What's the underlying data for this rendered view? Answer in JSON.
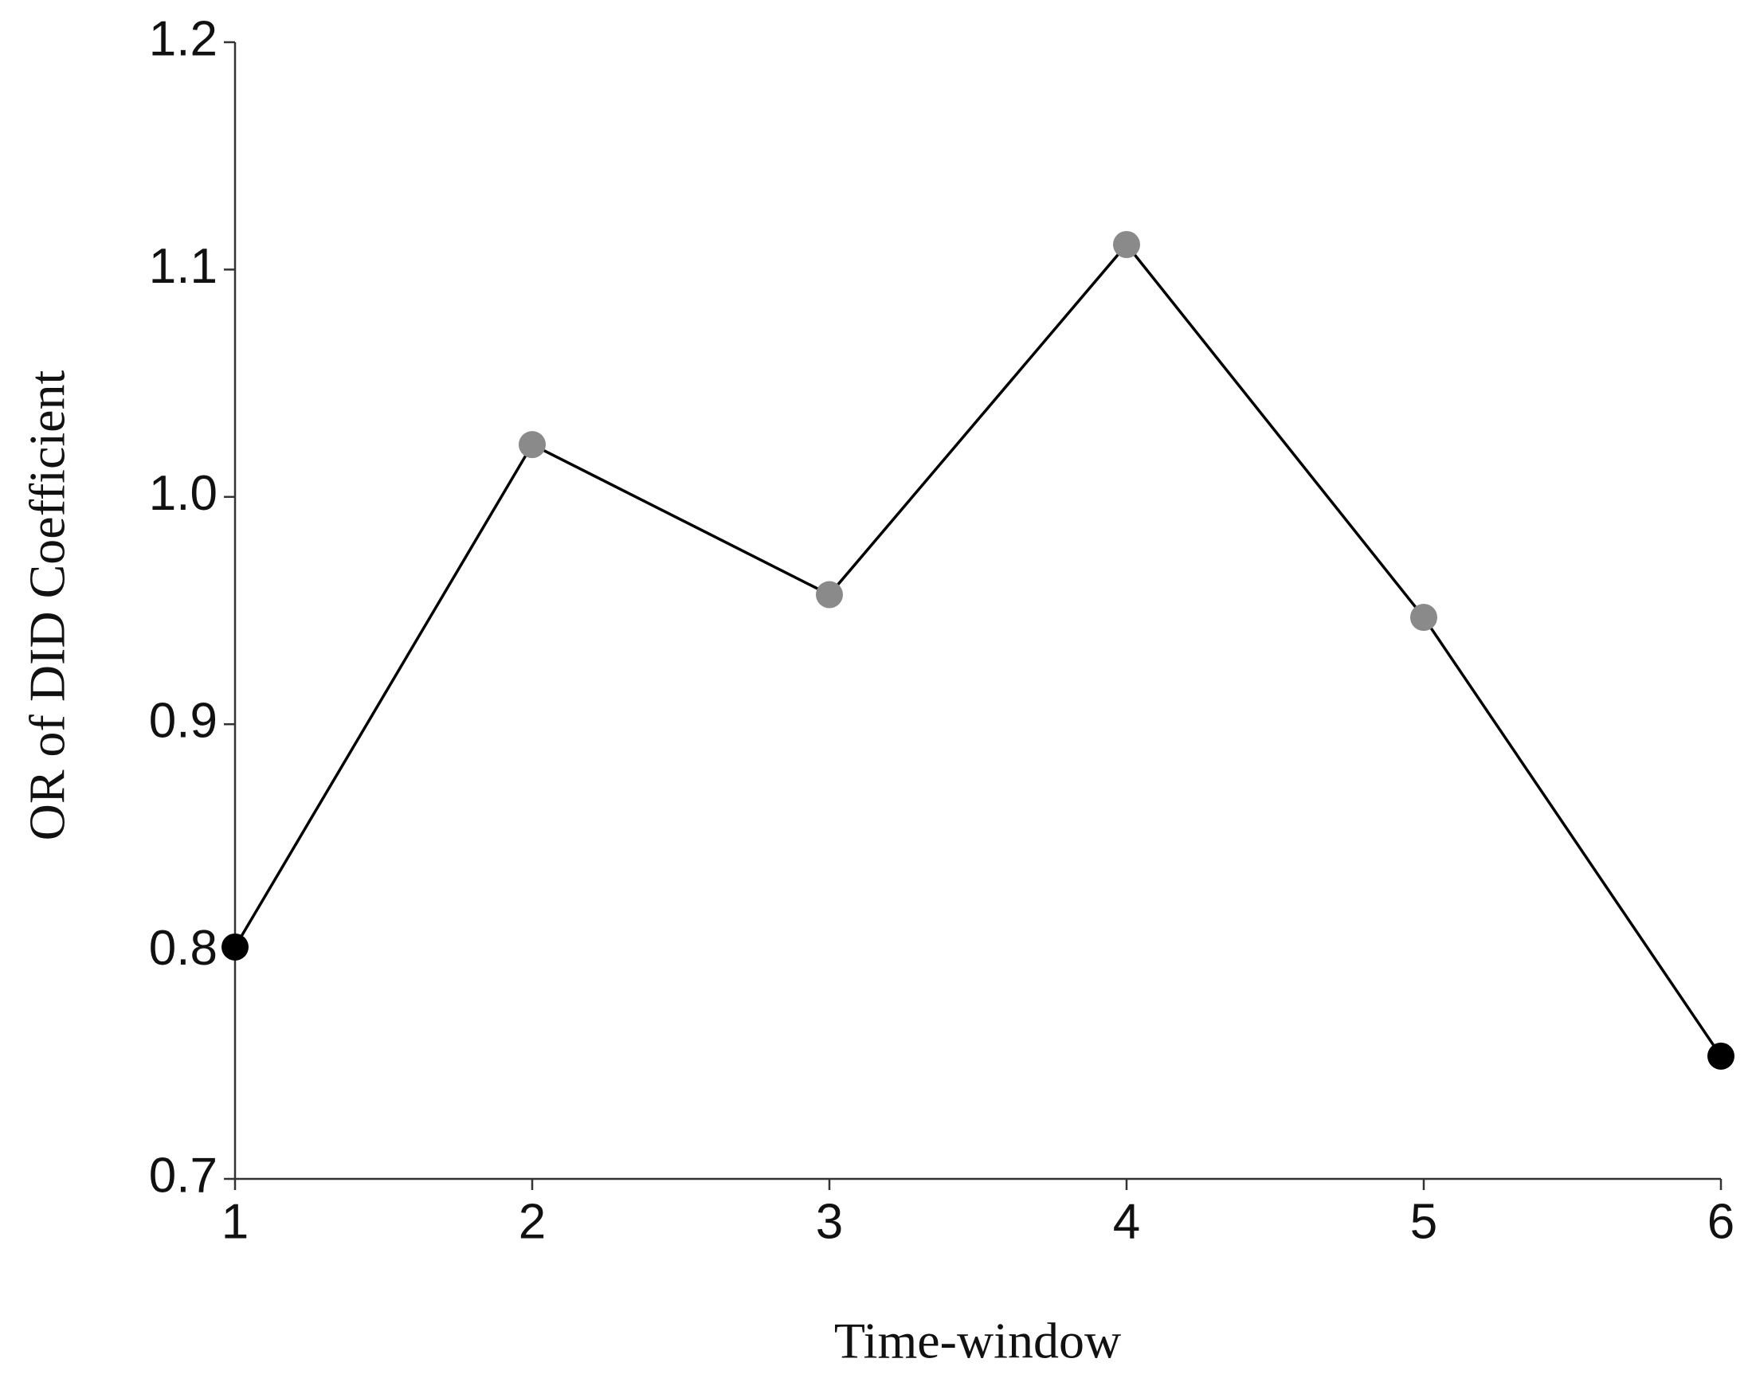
{
  "chart_data": {
    "type": "line",
    "x_label": "Time-window",
    "y_label": "OR of DID Coefficient",
    "x": [
      1,
      2,
      3,
      4,
      5,
      6
    ],
    "series": [
      {
        "color": "#000000",
        "point_colors": [
          "#000000",
          "#8a8a8a",
          "#8a8a8a",
          "#8a8a8a",
          "#8a8a8a",
          "#000000"
        ],
        "values": [
          0.802,
          1.023,
          0.957,
          1.111,
          0.947,
          0.754
        ]
      }
    ],
    "xlim": [
      1,
      6
    ],
    "xticks": [
      1,
      2,
      3,
      4,
      5,
      6
    ],
    "ylim": [
      0.7,
      1.2
    ],
    "yticks": [
      0.7,
      0.8,
      0.9,
      {
        "value": 1.0,
        "label": "1.0"
      },
      1.1,
      1.2
    ],
    "grid": false
  }
}
